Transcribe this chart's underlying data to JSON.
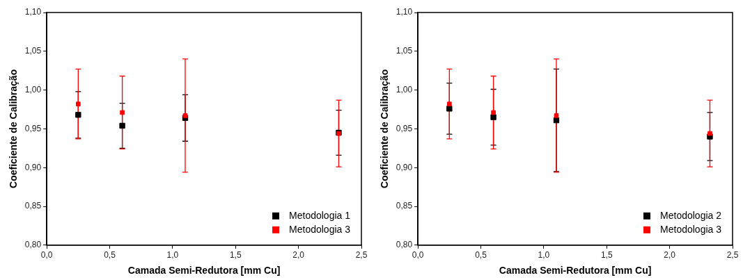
{
  "chart_data": [
    {
      "type": "scatter",
      "xlabel": "Camada Semi-Redutora [mm Cu]",
      "ylabel": "Coeficiente de Calibração",
      "xlim": [
        0,
        2.5
      ],
      "ylim": [
        0.8,
        1.1
      ],
      "xticks": [
        {
          "value": 0,
          "label": "0,0"
        },
        {
          "value": 0.5,
          "label": "0,5"
        },
        {
          "value": 1,
          "label": "1,0"
        },
        {
          "value": 1.5,
          "label": "1,5"
        },
        {
          "value": 2,
          "label": "2,0"
        },
        {
          "value": 2.5,
          "label": "2,5"
        }
      ],
      "yticks": [
        {
          "value": 0.8,
          "label": "0,80"
        },
        {
          "value": 0.85,
          "label": "0,85"
        },
        {
          "value": 0.9,
          "label": "0,90"
        },
        {
          "value": 0.95,
          "label": "0,95"
        },
        {
          "value": 1,
          "label": "1,00"
        },
        {
          "value": 1.05,
          "label": "1,05"
        },
        {
          "value": 1.1,
          "label": "1,10"
        }
      ],
      "x": [
        0.25,
        0.6,
        1.1,
        2.32
      ],
      "marker": "square",
      "legend": "bottom right",
      "grid": false,
      "series": [
        {
          "name": "Metodologia 1",
          "color": "#000000",
          "values": [
            0.968,
            0.954,
            0.964,
            0.945
          ],
          "errors": [
            0.03,
            0.029,
            0.03,
            0.029
          ]
        },
        {
          "name": "Metodologia 3",
          "color": "#ff0000",
          "values": [
            0.982,
            0.971,
            0.967,
            0.944
          ],
          "errors": [
            0.045,
            0.047,
            0.073,
            0.043
          ]
        }
      ]
    },
    {
      "type": "scatter",
      "xlabel": "Camada Semi-Redutora [mm Cu]",
      "ylabel": "Coeficiente de Calibração",
      "xlim": [
        0,
        2.5
      ],
      "ylim": [
        0.8,
        1.1
      ],
      "xticks": [
        {
          "value": 0,
          "label": "0,0"
        },
        {
          "value": 0.5,
          "label": "0,5"
        },
        {
          "value": 1,
          "label": "1,0"
        },
        {
          "value": 1.5,
          "label": "1,5"
        },
        {
          "value": 2,
          "label": "2,0"
        },
        {
          "value": 2.5,
          "label": "2,5"
        }
      ],
      "yticks": [
        {
          "value": 0.8,
          "label": "0,80"
        },
        {
          "value": 0.85,
          "label": "0,85"
        },
        {
          "value": 0.9,
          "label": "0,90"
        },
        {
          "value": 0.95,
          "label": "0,95"
        },
        {
          "value": 1,
          "label": "1,00"
        },
        {
          "value": 1.05,
          "label": "1,05"
        },
        {
          "value": 1.1,
          "label": "1,10"
        }
      ],
      "x": [
        0.25,
        0.6,
        1.1,
        2.32
      ],
      "marker": "square",
      "legend": "bottom right",
      "grid": false,
      "series": [
        {
          "name": "Metodologia 2",
          "color": "#000000",
          "values": [
            0.976,
            0.965,
            0.961,
            0.94
          ],
          "errors": [
            0.033,
            0.036,
            0.066,
            0.031
          ]
        },
        {
          "name": "Metodologia 3",
          "color": "#ff0000",
          "values": [
            0.982,
            0.971,
            0.967,
            0.944
          ],
          "errors": [
            0.045,
            0.047,
            0.073,
            0.043
          ]
        }
      ]
    }
  ]
}
